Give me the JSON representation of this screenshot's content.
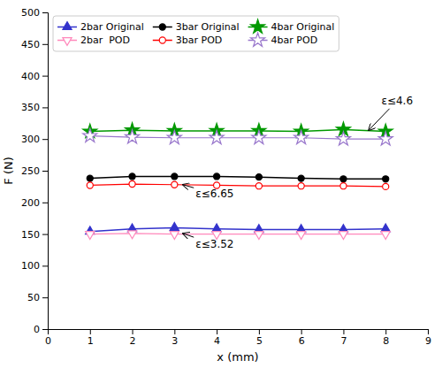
{
  "chart_data": {
    "type": "line",
    "xlabel": "x (mm)",
    "ylabel": "F (N)",
    "x": [
      1,
      2,
      3,
      4,
      5,
      6,
      7,
      8
    ],
    "xlim": [
      0,
      9
    ],
    "ylim": [
      0,
      500
    ],
    "xticks": [
      0,
      1,
      2,
      3,
      4,
      5,
      6,
      7,
      8,
      9
    ],
    "yticks": [
      0,
      50,
      100,
      150,
      200,
      250,
      300,
      350,
      400,
      450,
      500
    ],
    "grid": false,
    "legend": "top-left",
    "series": [
      {
        "name": "2bar Original",
        "color": "#3333CC",
        "marker": "triangle-up",
        "values": [
          154,
          158,
          160,
          158,
          157,
          157,
          157,
          158
        ]
      },
      {
        "name": "3bar Original",
        "color": "#000000",
        "marker": "circle",
        "values": [
          238,
          241,
          241,
          241,
          240,
          238,
          237,
          237
        ]
      },
      {
        "name": "4bar Original",
        "color": "#009900",
        "marker": "star",
        "values": [
          312,
          314,
          313,
          313,
          313,
          312,
          315,
          312
        ]
      },
      {
        "name": "2bar  POD",
        "color": "#FF88BB",
        "marker": "triangle-down-open",
        "values": [
          150,
          151,
          150,
          150,
          150,
          150,
          150,
          150
        ]
      },
      {
        "name": "3bar POD",
        "color": "#FF0000",
        "marker": "circle-open",
        "values": [
          227,
          229,
          228,
          227,
          226,
          226,
          226,
          225
        ]
      },
      {
        "name": "4bar POD",
        "color": "#9977CC",
        "marker": "star-open",
        "values": [
          305,
          303,
          302,
          302,
          302,
          302,
          300,
          300
        ]
      }
    ],
    "annotations": [
      {
        "text": "ε≤4.6",
        "x": 7.6,
        "y": 314,
        "text_x": 7.9,
        "text_y": 355
      },
      {
        "text": "ε≤6.65",
        "x": 3.2,
        "y": 228,
        "text_x": 3.5,
        "text_y": 208
      },
      {
        "text": "ε≤3.52",
        "x": 3.2,
        "y": 151,
        "text_x": 3.5,
        "text_y": 128
      }
    ]
  }
}
